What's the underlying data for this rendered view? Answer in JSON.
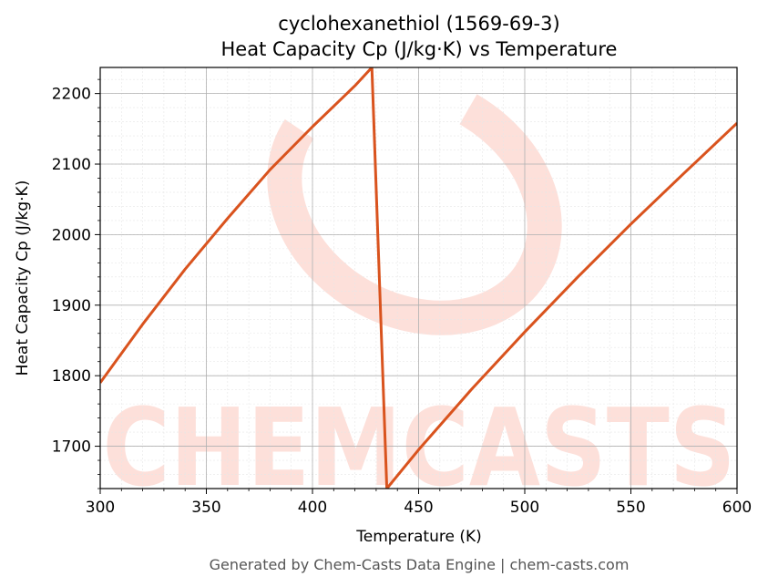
{
  "chart_data": {
    "type": "line",
    "title_lines": [
      "cyclohexanethiol (1569-69-3)",
      "Heat Capacity Cp (J/kg·K) vs Temperature"
    ],
    "xlabel": "Temperature (K)",
    "ylabel": "Heat Capacity Cp (J/kg·K)",
    "xlim": [
      300,
      600
    ],
    "ylim": [
      1640,
      2237
    ],
    "xticks": [
      300,
      350,
      400,
      450,
      500,
      550,
      600
    ],
    "yticks": [
      1700,
      1800,
      1900,
      2000,
      2100,
      2200
    ],
    "grid": true,
    "line_color": "#d9531e",
    "series": [
      {
        "x": [
          300,
          320,
          340,
          360,
          380,
          400,
          420,
          428,
          435,
          450,
          475,
          500,
          525,
          550,
          575,
          600
        ],
        "y": [
          1790,
          1873,
          1951,
          2023,
          2092,
          2153,
          2211,
          2237,
          1640,
          1695,
          1781,
          1862,
          1940,
          2015,
          2087,
          2158
        ]
      }
    ]
  },
  "watermark": "CHEMCASTS",
  "footer": "Generated by Chem-Casts Data Engine | chem-casts.com"
}
